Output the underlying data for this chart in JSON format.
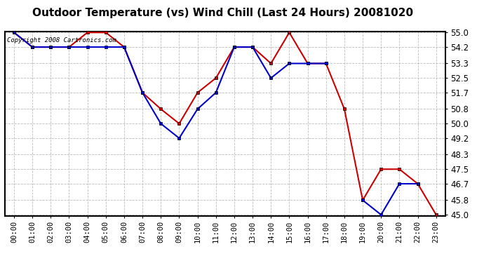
{
  "title": "Outdoor Temperature (vs) Wind Chill (Last 24 Hours) 20081020",
  "copyright": "Copyright 2008 Cartronics.com",
  "hours": [
    "00:00",
    "01:00",
    "02:00",
    "03:00",
    "04:00",
    "05:00",
    "06:00",
    "07:00",
    "08:00",
    "09:00",
    "10:00",
    "11:00",
    "12:00",
    "13:00",
    "14:00",
    "15:00",
    "16:00",
    "17:00",
    "18:00",
    "19:00",
    "20:00",
    "21:00",
    "22:00",
    "23:00"
  ],
  "temp": [
    55.0,
    54.2,
    54.2,
    54.2,
    55.0,
    55.0,
    54.2,
    51.7,
    50.8,
    50.0,
    51.7,
    52.5,
    54.2,
    54.2,
    53.3,
    55.0,
    53.3,
    53.3,
    50.8,
    45.8,
    47.5,
    47.5,
    46.7,
    45.0
  ],
  "windchill": [
    55.0,
    54.2,
    54.2,
    54.2,
    54.2,
    54.2,
    54.2,
    51.7,
    50.0,
    49.2,
    50.8,
    51.7,
    54.2,
    54.2,
    52.5,
    53.3,
    53.3,
    53.3,
    null,
    45.8,
    45.0,
    46.7,
    46.7,
    null
  ],
  "temp_color": "#cc0000",
  "windchill_color": "#0000cc",
  "bg_color": "#ffffff",
  "grid_color": "#bbbbbb",
  "ylim_min": 45.0,
  "ylim_max": 55.0,
  "yticks": [
    45.0,
    45.8,
    46.7,
    47.5,
    48.3,
    49.2,
    50.0,
    50.8,
    51.7,
    52.5,
    53.3,
    54.2,
    55.0
  ],
  "title_fontsize": 11,
  "copyright_fontsize": 6.5,
  "marker_size": 3.5,
  "linewidth": 1.5
}
